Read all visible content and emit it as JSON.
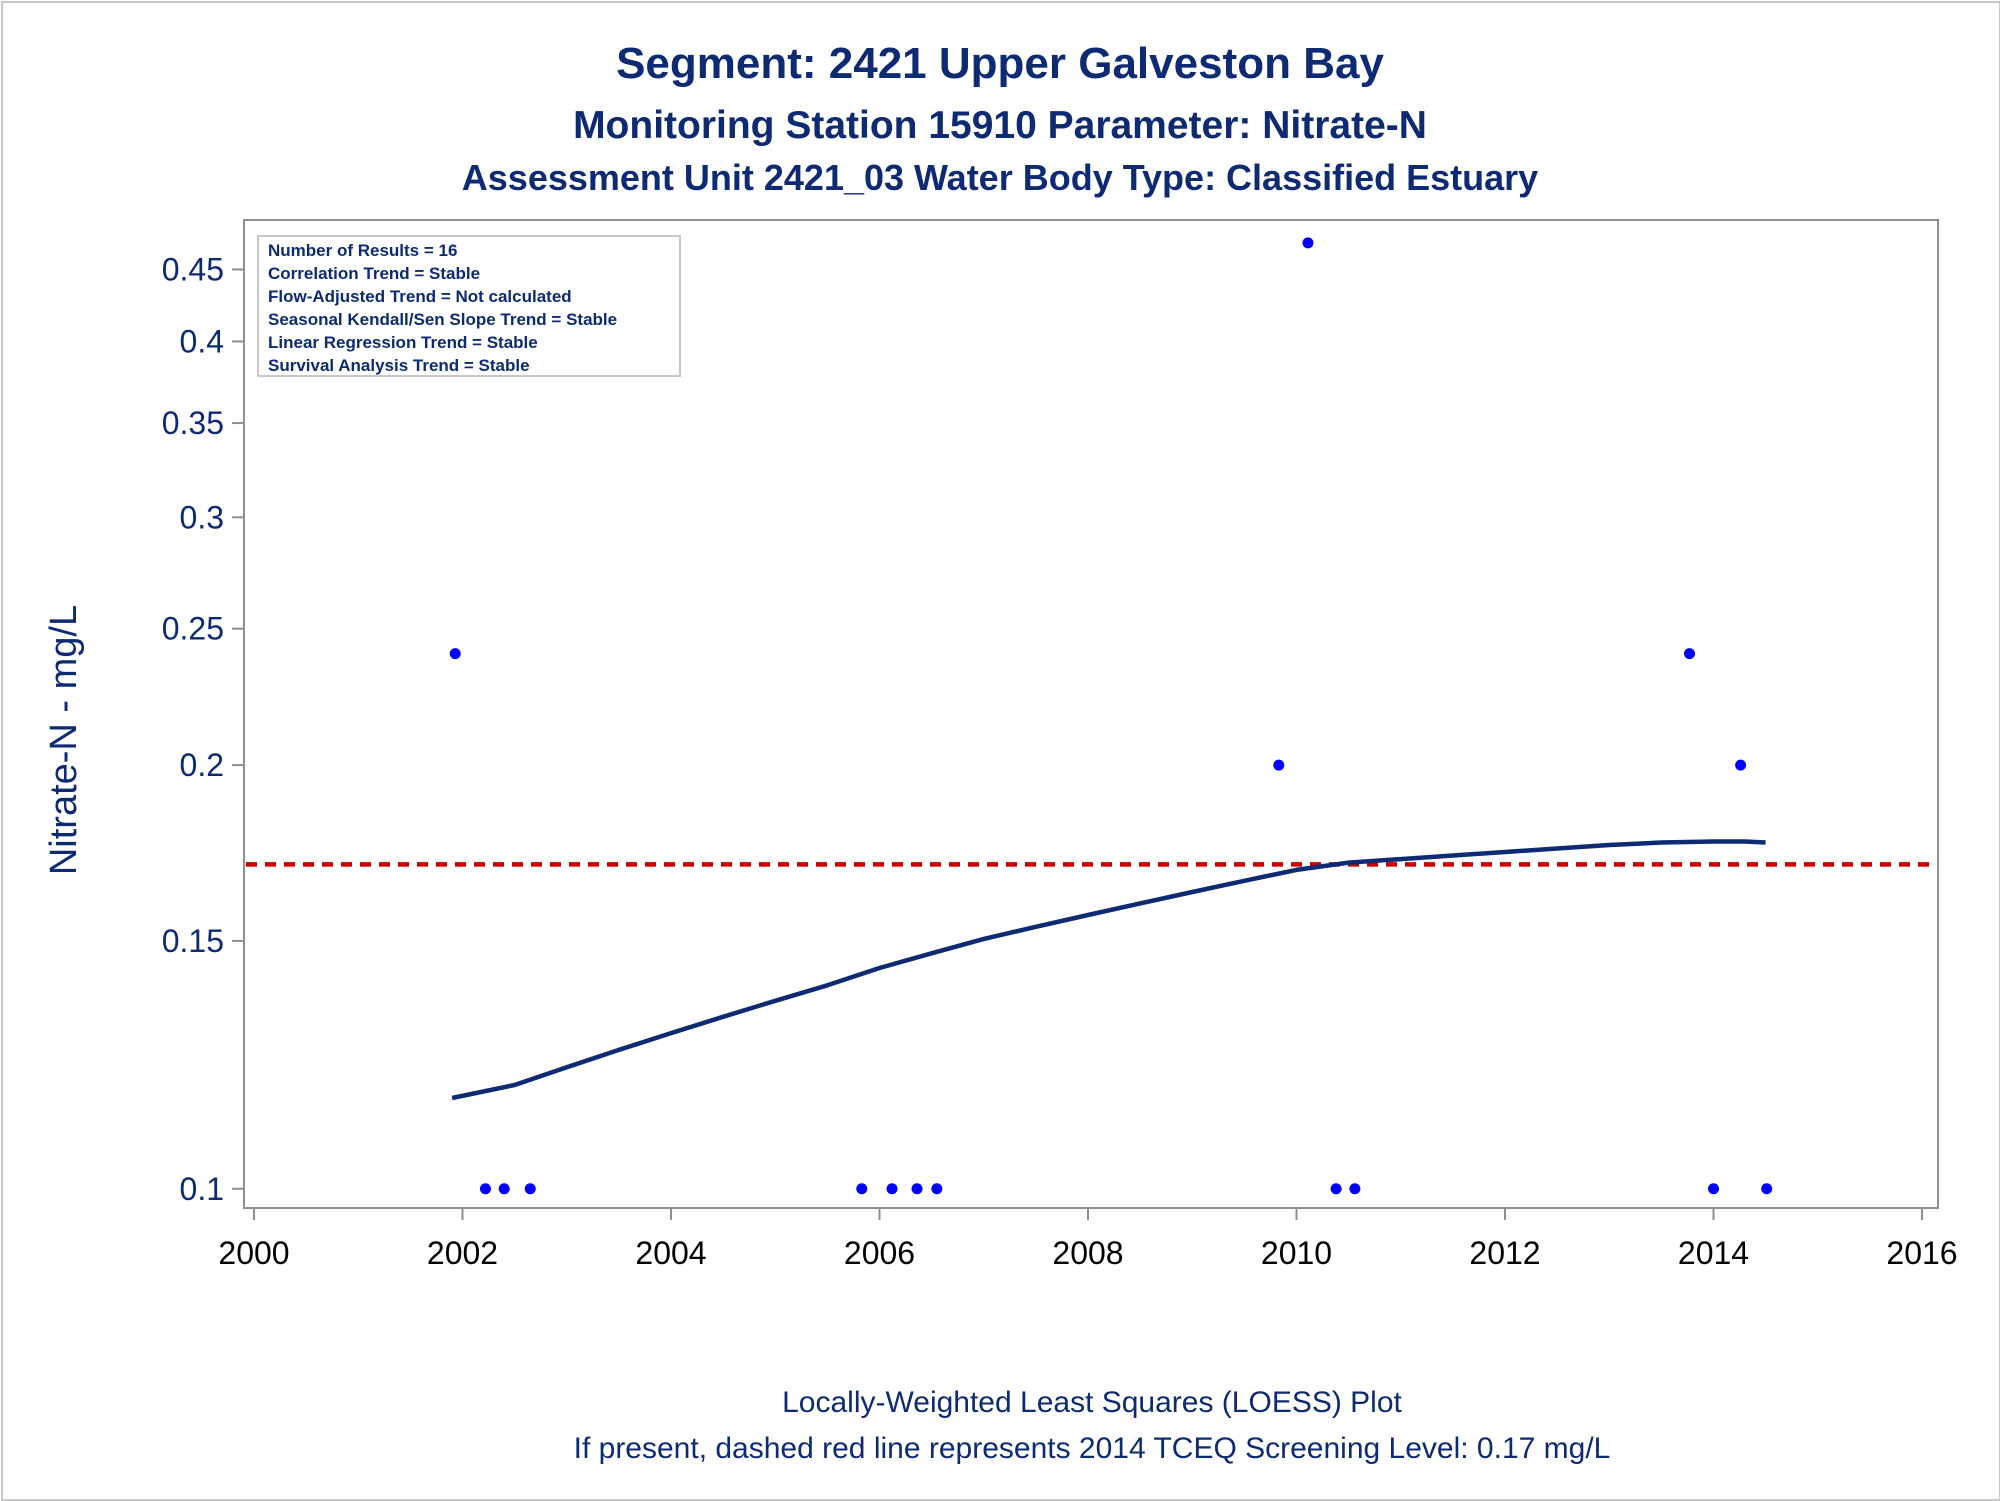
{
  "chart_data": {
    "type": "scatter",
    "title": "Segment: 2421  Upper Galveston Bay",
    "subtitle1": "Monitoring Station 15910 Parameter: Nitrate-N",
    "subtitle2": "Assessment Unit 2421_03   Water Body Type: Classified Estuary",
    "ylabel": "Nitrate-N - mg/L",
    "xlabel": "",
    "y_scale": "log",
    "xlim": [
      2000,
      2016
    ],
    "ylim": [
      0.0985,
      0.48
    ],
    "x_ticks": [
      2000,
      2002,
      2004,
      2006,
      2008,
      2010,
      2012,
      2014,
      2016
    ],
    "x_tick_labels": [
      "2000",
      "2002",
      "2004",
      "2006",
      "2008",
      "2010",
      "2012",
      "2014",
      "2016"
    ],
    "y_ticks": [
      0.1,
      0.15,
      0.2,
      0.25,
      0.3,
      0.35,
      0.4,
      0.45
    ],
    "y_tick_labels": [
      "0.1",
      "0.15",
      "0.2",
      "0.25",
      "0.3",
      "0.35",
      "0.4",
      "0.45"
    ],
    "grid": false,
    "points": {
      "x": [
        2001.93,
        2002.22,
        2002.4,
        2002.65,
        2005.83,
        2006.12,
        2006.36,
        2006.55,
        2009.83,
        2010.11,
        2010.38,
        2010.56,
        2013.77,
        2014.0,
        2014.26,
        2014.51
      ],
      "y": [
        0.24,
        0.1,
        0.1,
        0.1,
        0.1,
        0.1,
        0.1,
        0.1,
        0.2,
        0.47,
        0.1,
        0.1,
        0.24,
        0.1,
        0.2,
        0.1
      ],
      "color": "#0000ff"
    },
    "loess": {
      "x": [
        2001.9,
        2002.5,
        2003.0,
        2003.5,
        2004.0,
        2004.5,
        2005.0,
        2005.5,
        2006.0,
        2006.5,
        2007.0,
        2007.5,
        2008.0,
        2008.5,
        2009.0,
        2009.5,
        2010.0,
        2010.5,
        2011.0,
        2011.5,
        2012.0,
        2012.5,
        2013.0,
        2013.5,
        2014.0,
        2014.3,
        2014.5
      ],
      "y": [
        0.116,
        0.1185,
        0.122,
        0.1255,
        0.129,
        0.1325,
        0.136,
        0.1395,
        0.1435,
        0.147,
        0.1505,
        0.1535,
        0.1565,
        0.1595,
        0.1625,
        0.1655,
        0.1685,
        0.1705,
        0.1715,
        0.1725,
        0.1735,
        0.1745,
        0.1755,
        0.1762,
        0.1765,
        0.1765,
        0.1762
      ],
      "color": "#0d2a73"
    },
    "screening_level": {
      "y": 0.17,
      "color": "#cc0000",
      "style": "dashed"
    },
    "inset": [
      "Number of Results = 16",
      "Correlation Trend = Stable",
      "Flow-Adjusted Trend = Not calculated",
      "Seasonal Kendall/Sen Slope Trend = Stable",
      "Linear Regression Trend = Stable",
      "Survival Analysis Trend = Stable"
    ],
    "footnotes": [
      "Locally-Weighted Least Squares (LOESS) Plot",
      "If present, dashed red line represents 2014 TCEQ Screening Level: 0.17 mg/L"
    ]
  }
}
